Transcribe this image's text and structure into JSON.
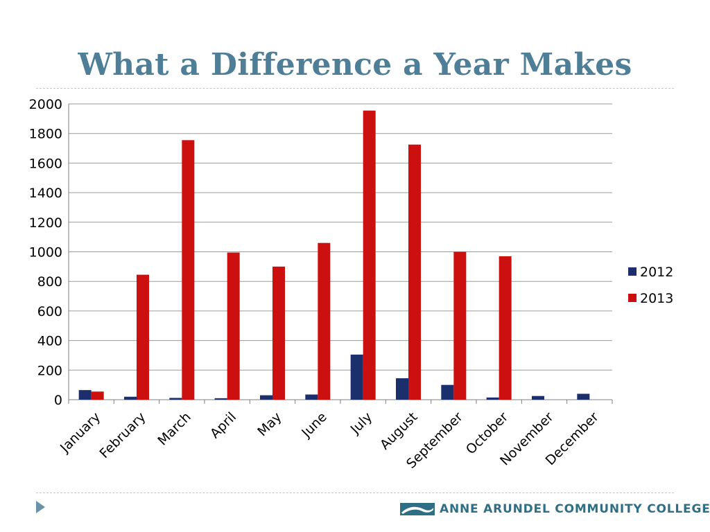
{
  "slide": {
    "title": "What a Difference a Year Makes",
    "footer_logo_text": "ANNE ARUNDEL COMMUNITY COLLEGE"
  },
  "colors": {
    "title": "#4f7f97",
    "series_2012": "#1a2f6b",
    "series_2013": "#cc1010",
    "grid": "#9a9a9a"
  },
  "chart_data": {
    "type": "bar",
    "title": "",
    "xlabel": "",
    "ylabel": "",
    "ylim": [
      0,
      2000
    ],
    "yticks": [
      0,
      200,
      400,
      600,
      800,
      1000,
      1200,
      1400,
      1600,
      1800,
      2000
    ],
    "grid": true,
    "legend_position": "right",
    "categories": [
      "January",
      "February",
      "March",
      "April",
      "May",
      "June",
      "July",
      "August",
      "September",
      "October",
      "November",
      "December"
    ],
    "series": [
      {
        "name": "2012",
        "color": "#1a2f6b",
        "values": [
          65,
          20,
          12,
          10,
          30,
          35,
          305,
          145,
          100,
          15,
          25,
          40
        ]
      },
      {
        "name": "2013",
        "color": "#cc1010",
        "values": [
          55,
          845,
          1755,
          995,
          900,
          1060,
          1955,
          1725,
          1000,
          970,
          0,
          0
        ]
      }
    ]
  }
}
